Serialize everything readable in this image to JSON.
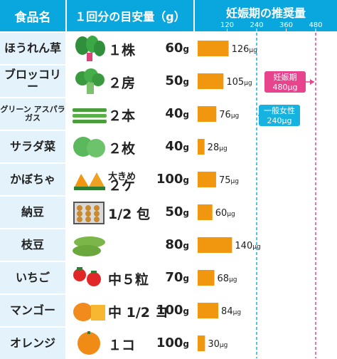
{
  "header": {
    "food": "食品名",
    "amount": "１回分の目安量（g）",
    "recommended": "妊娠期の推奨量"
  },
  "colors": {
    "header": "#0aa6de",
    "bar": "#f0960f",
    "pregnancy_line": "#e8438d",
    "general_line": "#16b3e0",
    "food_bg": "#e3f2fb"
  },
  "rows": [
    {
      "name": "ほうれん草",
      "prefix": "",
      "count": "１株",
      "weight": "60",
      "unit": "g",
      "value": 126,
      "value_label": "126",
      "value_unit": "μg",
      "icon": "spinach"
    },
    {
      "name": "ブロッコリー",
      "prefix": "",
      "count": "２房",
      "weight": "50",
      "unit": "g",
      "value": 105,
      "value_label": "105",
      "value_unit": "μg",
      "icon": "broccoli"
    },
    {
      "name": "グリーン アスパラガス",
      "prefix": "",
      "count": "２本",
      "weight": "40",
      "unit": "g",
      "value": 76,
      "value_label": "76",
      "value_unit": "μg",
      "icon": "asparagus"
    },
    {
      "name": "サラダ菜",
      "prefix": "",
      "count": "２枚",
      "weight": "40",
      "unit": "g",
      "value": 28,
      "value_label": "28",
      "value_unit": "μg",
      "icon": "lettuce"
    },
    {
      "name": "かぼちゃ",
      "prefix": "大きめ",
      "count": "２ケ",
      "weight": "100",
      "unit": "g",
      "value": 75,
      "value_label": "75",
      "value_unit": "μg",
      "icon": "pumpkin"
    },
    {
      "name": "納豆",
      "prefix": "",
      "count": "1/2 包",
      "weight": "50",
      "unit": "g",
      "value": 60,
      "value_label": "60",
      "value_unit": "μg",
      "icon": "natto"
    },
    {
      "name": "枝豆",
      "prefix": "",
      "count": "",
      "weight": "80",
      "unit": "g",
      "value": 140,
      "value_label": "140",
      "value_unit": "μg",
      "icon": "edamame"
    },
    {
      "name": "いちご",
      "prefix": "",
      "count": "中５粒",
      "weight": "70",
      "unit": "g",
      "value": 68,
      "value_label": "68",
      "value_unit": "μg",
      "icon": "strawberry"
    },
    {
      "name": "マンゴー",
      "prefix": "",
      "count": "中 1/2 コ",
      "weight": "100",
      "unit": "g",
      "value": 84,
      "value_label": "84",
      "value_unit": "μg",
      "icon": "mango"
    },
    {
      "name": "オレンジ",
      "prefix": "",
      "count": "１コ",
      "weight": "100",
      "unit": "g",
      "value": 30,
      "value_label": "30",
      "value_unit": "μg",
      "icon": "orange"
    }
  ],
  "chart_data": {
    "type": "bar",
    "orientation": "horizontal",
    "categories": [
      "ほうれん草",
      "ブロッコリー",
      "グリーン アスパラガス",
      "サラダ菜",
      "かぼちゃ",
      "納豆",
      "枝豆",
      "いちご",
      "マンゴー",
      "オレンジ"
    ],
    "values": [
      126,
      105,
      76,
      28,
      75,
      60,
      140,
      68,
      84,
      30
    ],
    "value_unit": "μg",
    "title": "妊娠期の推奨量",
    "xticks": [
      120,
      240,
      360,
      480
    ],
    "xlim": [
      0,
      480
    ],
    "reference_lines": [
      {
        "value": 480,
        "label_1": "妊娠期",
        "label_2": "480μg",
        "color": "#e8438d"
      },
      {
        "value": 240,
        "label_1": "一般女性",
        "label_2": "240μg",
        "color": "#16b3e0"
      }
    ]
  }
}
